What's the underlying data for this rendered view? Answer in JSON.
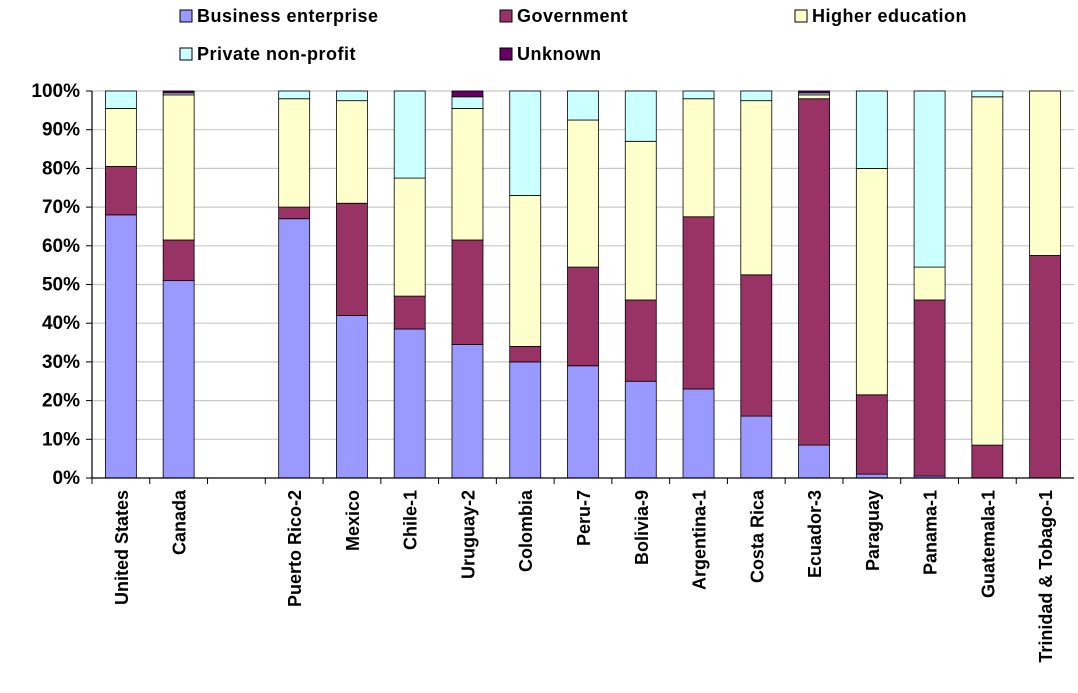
{
  "chart_data": {
    "type": "bar",
    "stacked": true,
    "percent_stacked": true,
    "categories": [
      "United States",
      "Canada",
      "",
      "Puerto Rico-2",
      "Mexico",
      "Chile-1",
      "Uruguay-2",
      "Colombia",
      "Peru-7",
      "Bolivia-9",
      "Argentina-1",
      "Costa Rica",
      "Ecuador-3",
      "Paraguay",
      "Panama-1",
      "Guatemala-1",
      "Trinidad & Tobago-1"
    ],
    "series": [
      {
        "name": "Business enterprise",
        "color": "#9999ff",
        "values": [
          68,
          51,
          null,
          67,
          42,
          38.5,
          34.5,
          30,
          29,
          25,
          23,
          16,
          8.5,
          1,
          0.5,
          0,
          0
        ]
      },
      {
        "name": "Government",
        "color": "#993366",
        "values": [
          12.5,
          10.5,
          null,
          3,
          29,
          8.5,
          27,
          4,
          25.5,
          21,
          44.5,
          36.5,
          89.5,
          20.5,
          45.5,
          8.5,
          57.5
        ]
      },
      {
        "name": "Higher education",
        "color": "#ffffcc",
        "values": [
          15,
          37.5,
          null,
          28,
          26.5,
          30.5,
          34,
          39,
          38,
          41,
          30.5,
          45,
          1,
          58.5,
          8.5,
          90,
          42.5
        ]
      },
      {
        "name": "Private non-profit",
        "color": "#ccffff",
        "values": [
          4.5,
          0.5,
          null,
          2,
          2.5,
          22.5,
          3,
          27,
          7.5,
          13,
          2,
          2.5,
          0.5,
          20,
          45.5,
          1.5,
          0
        ]
      },
      {
        "name": "Unknown",
        "color": "#660066",
        "values": [
          0,
          0.5,
          null,
          0,
          0,
          0,
          1.5,
          0,
          0,
          0,
          0,
          0,
          0.5,
          0,
          0,
          0,
          0
        ]
      }
    ],
    "yticks": [
      "0%",
      "10%",
      "20%",
      "30%",
      "40%",
      "50%",
      "60%",
      "70%",
      "80%",
      "90%",
      "100%"
    ],
    "ylim": [
      0,
      100
    ],
    "grid": true,
    "legend": "top"
  }
}
